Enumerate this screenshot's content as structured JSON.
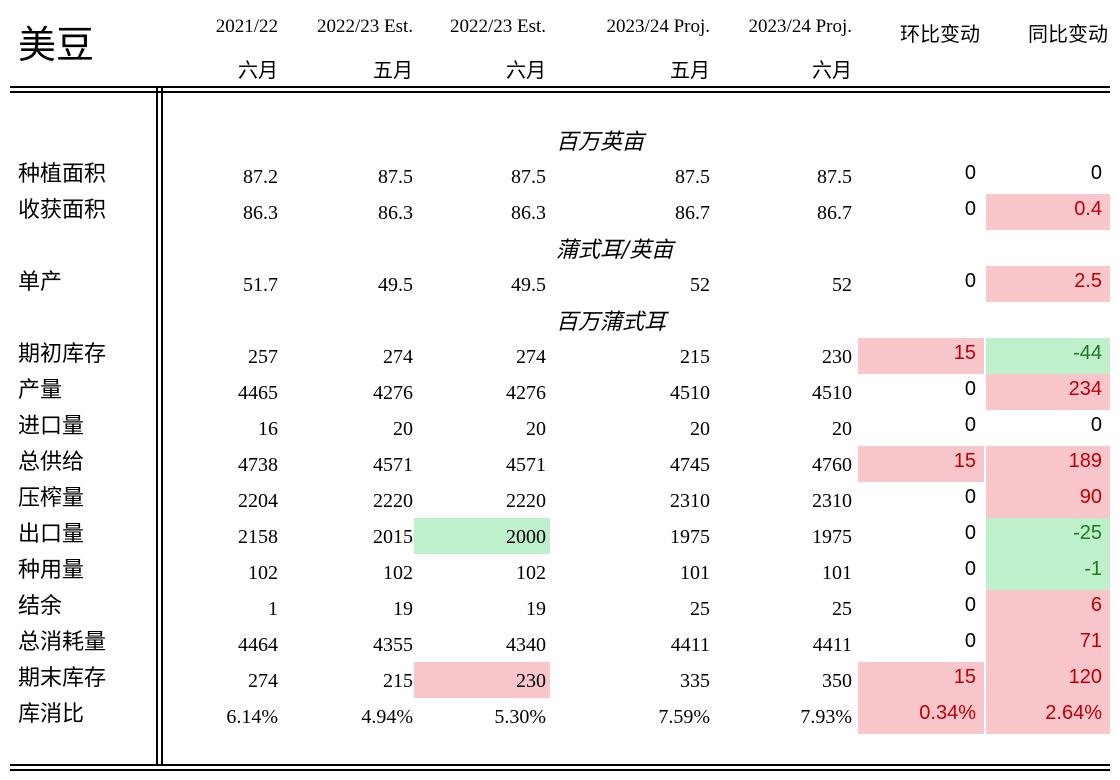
{
  "title": "美豆",
  "headers": {
    "row1": [
      "2021/22",
      "2022/23 Est.",
      "2022/23 Est.",
      "2023/24 Proj.",
      "2023/24 Proj."
    ],
    "row2": [
      "六月",
      "五月",
      "六月",
      "五月",
      "六月"
    ],
    "chg_mom": "环比变动",
    "chg_yoy": "同比变动"
  },
  "units": {
    "area": "百万英亩",
    "yield": "蒲式耳/英亩",
    "supply": "百万蒲式耳"
  },
  "colors": {
    "pos_bg": "#f9c6cc",
    "neg_bg": "#bff0cc",
    "pos_text": "#c00000",
    "neg_text": "#1d7a1d"
  },
  "rows": [
    {
      "label": "种植面积",
      "values": [
        "87.2",
        "87.5",
        "87.5",
        "87.5",
        "87.5"
      ],
      "mom": "0",
      "yoy": "0",
      "mom_style": "plain",
      "yoy_style": "plain"
    },
    {
      "label": "收获面积",
      "values": [
        "86.3",
        "86.3",
        "86.3",
        "86.7",
        "86.7"
      ],
      "mom": "0",
      "yoy": "0.4",
      "mom_style": "plain",
      "yoy_style": "pos"
    },
    {
      "label": "单产",
      "values": [
        "51.7",
        "49.5",
        "49.5",
        "52",
        "52"
      ],
      "mom": "0",
      "yoy": "2.5",
      "mom_style": "plain",
      "yoy_style": "pos"
    },
    {
      "label": "期初库存",
      "values": [
        "257",
        "274",
        "274",
        "215",
        "230"
      ],
      "mom": "15",
      "yoy": "-44",
      "mom_style": "pos",
      "yoy_style": "neg"
    },
    {
      "label": "产量",
      "values": [
        "4465",
        "4276",
        "4276",
        "4510",
        "4510"
      ],
      "mom": "0",
      "yoy": "234",
      "mom_style": "plain",
      "yoy_style": "pos"
    },
    {
      "label": "进口量",
      "values": [
        "16",
        "20",
        "20",
        "20",
        "20"
      ],
      "mom": "0",
      "yoy": "0",
      "mom_style": "plain",
      "yoy_style": "plain"
    },
    {
      "label": "总供给",
      "values": [
        "4738",
        "4571",
        "4571",
        "4745",
        "4760"
      ],
      "mom": "15",
      "yoy": "189",
      "mom_style": "pos",
      "yoy_style": "pos"
    },
    {
      "label": "压榨量",
      "values": [
        "2204",
        "2220",
        "2220",
        "2310",
        "2310"
      ],
      "mom": "0",
      "yoy": "90",
      "mom_style": "plain",
      "yoy_style": "pos"
    },
    {
      "label": "出口量",
      "values": [
        "2158",
        "2015",
        "2000",
        "1975",
        "1975"
      ],
      "mom": "0",
      "yoy": "-25",
      "mom_style": "plain",
      "yoy_style": "neg"
    },
    {
      "label": "种用量",
      "values": [
        "102",
        "102",
        "102",
        "101",
        "101"
      ],
      "mom": "0",
      "yoy": "-1",
      "mom_style": "plain",
      "yoy_style": "neg"
    },
    {
      "label": "结余",
      "values": [
        "1",
        "19",
        "19",
        "25",
        "25"
      ],
      "mom": "0",
      "yoy": "6",
      "mom_style": "plain",
      "yoy_style": "pos"
    },
    {
      "label": "总消耗量",
      "values": [
        "4464",
        "4355",
        "4340",
        "4411",
        "4411"
      ],
      "mom": "0",
      "yoy": "71",
      "mom_style": "plain",
      "yoy_style": "pos"
    },
    {
      "label": "期末库存",
      "values": [
        "274",
        "215",
        "230",
        "335",
        "350"
      ],
      "mom": "15",
      "yoy": "120",
      "mom_style": "pos",
      "yoy_style": "pos"
    },
    {
      "label": "库消比",
      "values": [
        "6.14%",
        "4.94%",
        "5.30%",
        "7.59%",
        "7.93%"
      ],
      "mom": "0.34%",
      "yoy": "2.64%",
      "mom_style": "pos",
      "yoy_style": "pos"
    }
  ]
}
